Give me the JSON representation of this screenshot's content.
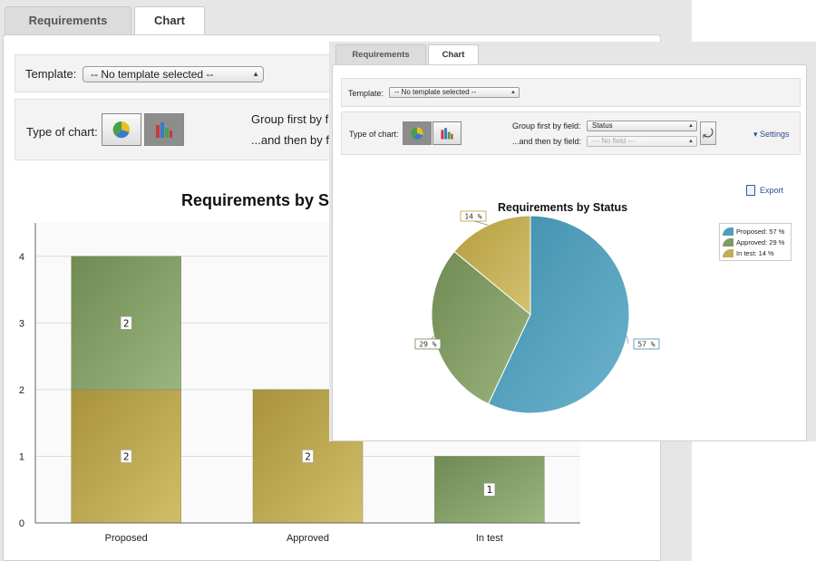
{
  "tabs": [
    {
      "label": "Requirements"
    },
    {
      "label": "Chart"
    }
  ],
  "template": {
    "label": "Template:",
    "value": "-- No template selected --"
  },
  "chart_type": {
    "label": "Type of chart:",
    "options": [
      "pie",
      "bar"
    ]
  },
  "group_first": {
    "label": "Group first by field:",
    "value": "Status"
  },
  "group_then": {
    "label": "...and then by field:",
    "value": "--- No field ---"
  },
  "back_partial": {
    "group_first_label": "Group first by f",
    "group_then_label": "...and then by f",
    "chart_title": "Requirements by S"
  },
  "settings_label": "Settings",
  "export_label": "Export",
  "colors": {
    "proposed": "#4e9fbd",
    "approved": "#7f9a62",
    "in_test": "#c2ad55",
    "bar_olive": "#b29d45",
    "bar_green": "#7e9660"
  },
  "icons": {
    "pie": "pie-chart-icon",
    "bar": "bar-chart-icon",
    "refresh": "refresh-icon",
    "export": "export-icon",
    "settings": "chevron-down-icon"
  },
  "chart_data": [
    {
      "type": "bar",
      "title": "Requirements by Status",
      "categories": [
        "Proposed",
        "Approved",
        "In test"
      ],
      "stacked": true,
      "ylim": [
        0,
        4.5
      ],
      "yticks": [
        "0",
        "1",
        "2",
        "3",
        "4"
      ],
      "segments": [
        {
          "category": "Proposed",
          "base": 0,
          "value": 2,
          "label": "2",
          "color": "#b29d45"
        },
        {
          "category": "Proposed",
          "base": 2,
          "value": 2,
          "label": "2",
          "color": "#7e9660"
        },
        {
          "category": "Approved",
          "base": 0,
          "value": 2,
          "label": "2",
          "color": "#b29d45"
        },
        {
          "category": "In test",
          "base": 0,
          "value": 1,
          "label": "1",
          "color": "#7e9660"
        }
      ],
      "grid": true
    },
    {
      "type": "pie",
      "title": "Requirements by Status",
      "slices": [
        {
          "name": "Proposed",
          "value": 57,
          "label": "57 %",
          "legend": "Proposed: 57 %"
        },
        {
          "name": "Approved",
          "value": 29,
          "label": "29 %",
          "legend": "Approved: 29 %"
        },
        {
          "name": "In test",
          "value": 14,
          "label": "14 %",
          "legend": "In test: 14 %"
        }
      ],
      "legend_position": "top-right"
    }
  ]
}
